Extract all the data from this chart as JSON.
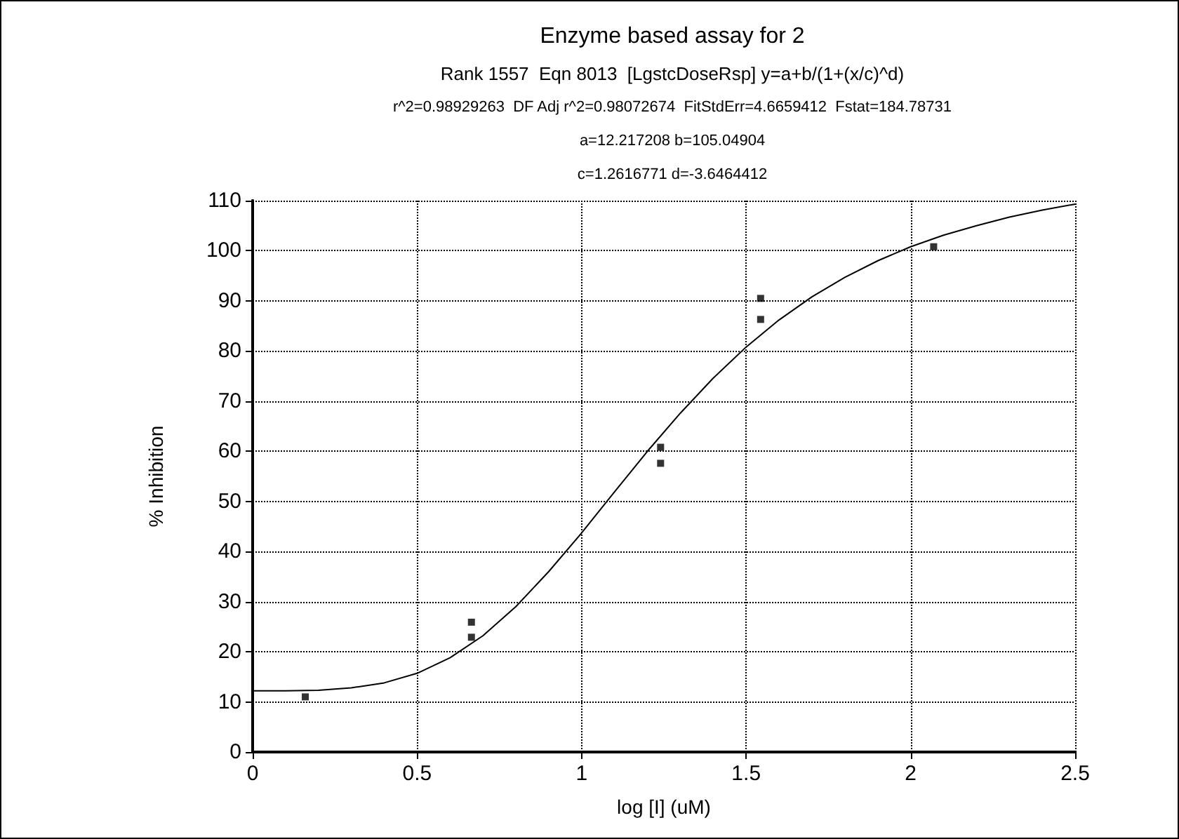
{
  "chart_data": {
    "type": "scatter",
    "title": "Enzyme based assay for 2",
    "subtitle": "Rank 1557  Eqn 8013  [LgstcDoseRsp] y=a+b/(1+(x/c)^d)",
    "annotations": [
      "r^2=0.98929263  DF Adj r^2=0.98072674  FitStdErr=4.6659412  Fstat=184.78731",
      "a=12.217208 b=105.04904",
      "c=1.2616771 d=-3.6464412"
    ],
    "xlabel": "log [I] (uM)",
    "ylabel": "% Inhibition",
    "series": [
      {
        "color": "#000000",
        "marker": "square",
        "x": [
          0.16,
          0.665,
          0.665,
          1.24,
          1.24,
          1.544,
          1.544,
          2.07
        ],
        "values": [
          11,
          25.9,
          22.9,
          60.8,
          57.6,
          90.5,
          86.3,
          100.8
        ]
      },
      {
        "type": "line",
        "color": "#000000",
        "marker": "none",
        "line_style": "solid",
        "x": [
          0,
          0.1,
          0.2,
          0.3,
          0.4,
          0.5,
          0.6,
          0.7,
          0.8,
          0.9,
          1.0,
          1.1,
          1.2,
          1.3,
          1.4,
          1.5,
          1.6,
          1.7,
          1.8,
          1.9,
          2.0,
          2.1,
          2.2,
          2.3,
          2.4,
          2.5
        ],
        "values": [
          12.2,
          12.2,
          12.3,
          12.8,
          13.8,
          15.7,
          18.8,
          23.2,
          29.0,
          36.0,
          43.7,
          51.9,
          60.0,
          67.6,
          74.6,
          80.8,
          86.2,
          90.8,
          94.7,
          98.0,
          100.8,
          103.1,
          105.0,
          106.7,
          108.1,
          109.3
        ]
      }
    ],
    "xlim": [
      0,
      2.5
    ],
    "xticks": [
      0,
      0.5,
      1,
      1.5,
      2,
      2.5
    ],
    "ylim": [
      0,
      110
    ],
    "yticks": [
      0,
      10,
      20,
      30,
      40,
      50,
      60,
      70,
      80,
      90,
      100,
      110
    ],
    "grid": true
  }
}
